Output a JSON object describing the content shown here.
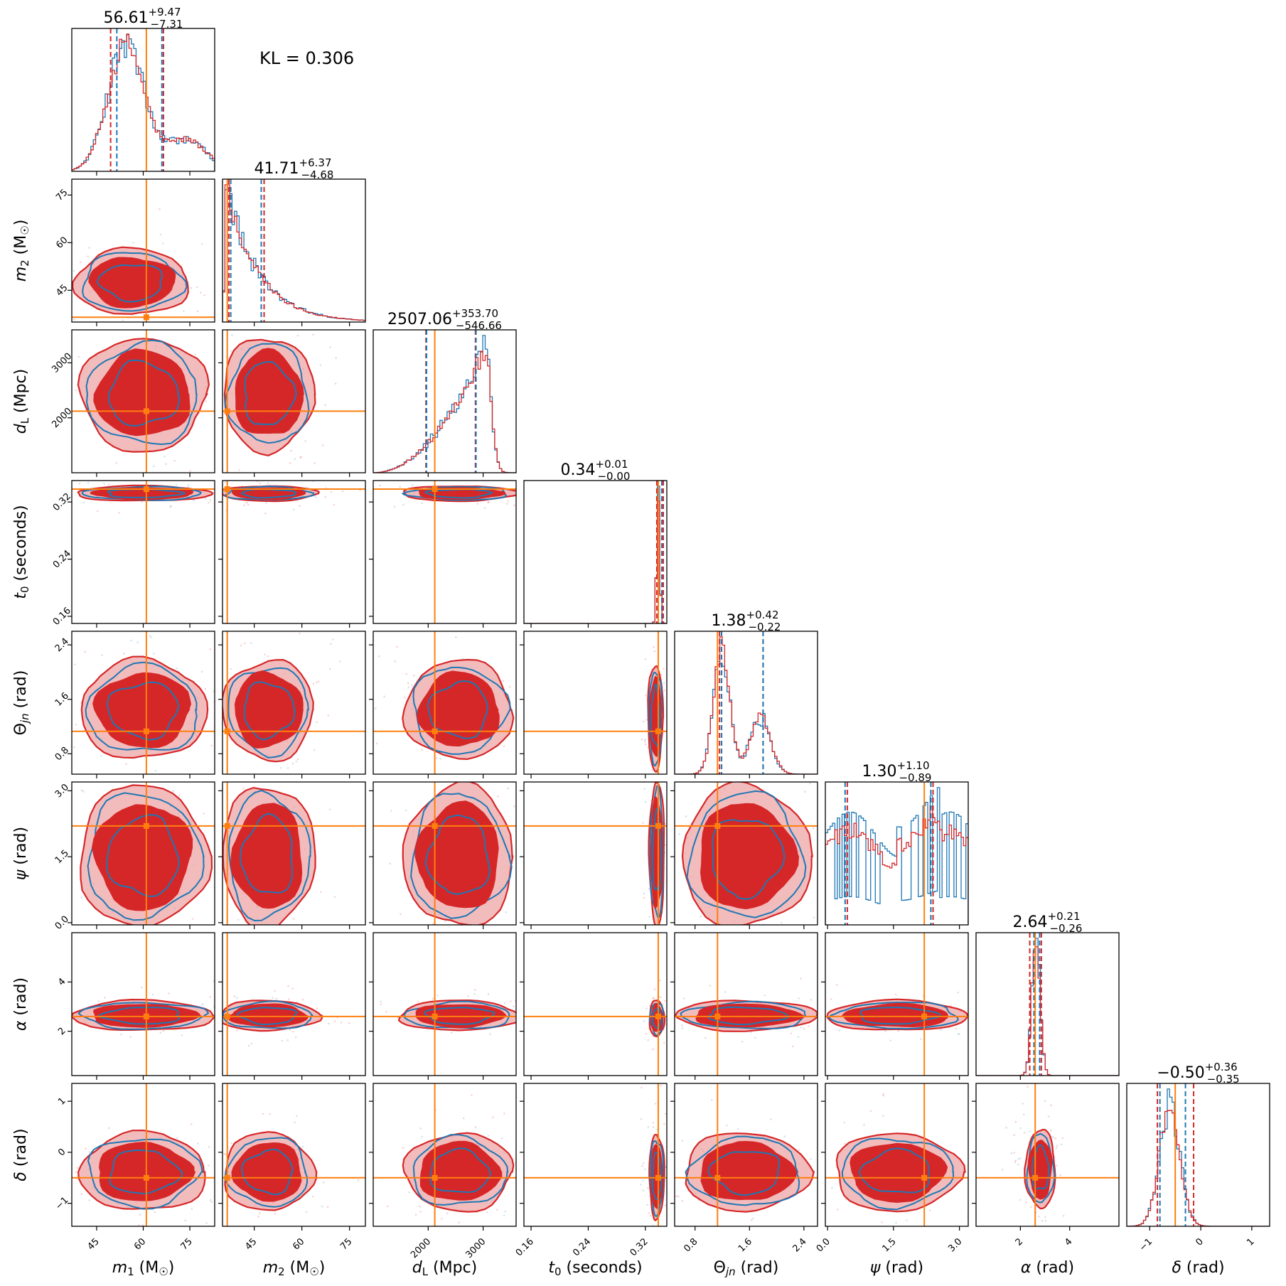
{
  "annotation": "KL = 0.306",
  "colors": {
    "red": "#d62728",
    "red_light": "#eda0a1",
    "blue": "#1f77b4",
    "truth": "#ff7f0e",
    "dark_median": "#7f2c3a"
  },
  "chart_data": {
    "type": "corner",
    "parameters": [
      {
        "key": "m1",
        "label": "m1 (M☉)",
        "range": [
          37,
          83
        ],
        "ticks": [
          45,
          60,
          75
        ],
        "tick_labels": [
          "45",
          "60",
          "75"
        ],
        "truth": 61,
        "title_main": "56.61",
        "title_sup": "+9.47",
        "title_sub": "−7.31",
        "q_red": [
          49.5,
          66.5
        ],
        "q_blue": [
          51.5,
          66
        ]
      },
      {
        "key": "m2",
        "label": "m2 (M☉)",
        "range": [
          35,
          80
        ],
        "ticks": [
          45,
          60,
          75
        ],
        "tick_labels": [
          "45",
          "60",
          "75"
        ],
        "truth": 36.5,
        "title_main": "41.71",
        "title_sup": "+6.37",
        "title_sub": "−4.68",
        "q_red": [
          37,
          48.1
        ],
        "q_blue": [
          37.6,
          47.2
        ]
      },
      {
        "key": "dL",
        "label": "dL (Mpc)",
        "range": [
          1000,
          3600
        ],
        "ticks": [
          2000,
          3000
        ],
        "tick_labels": [
          "2000",
          "3000"
        ],
        "truth": 2120,
        "title_main": "2507.06",
        "title_sup": "+353.70",
        "title_sub": "−546.66",
        "q_red": [
          1960,
          2860
        ],
        "q_blue": [
          1970,
          2870
        ]
      },
      {
        "key": "t0",
        "label": "t0 (seconds)",
        "range": [
          0.15,
          0.35
        ],
        "ticks": [
          0.16,
          0.24,
          0.32
        ],
        "tick_labels": [
          "0.16",
          "0.24",
          "0.32"
        ],
        "truth": 0.338,
        "title_main": "0.34",
        "title_sup": "+0.01",
        "title_sub": "−0.00",
        "q_red": [
          0.336,
          0.345
        ],
        "q_blue": [
          0.338,
          0.343
        ]
      },
      {
        "key": "thetajn",
        "label": "Θjn (rad)",
        "range": [
          0.5,
          2.6
        ],
        "ticks": [
          0.8,
          1.6,
          2.4
        ],
        "tick_labels": [
          "0.8",
          "1.6",
          "2.4"
        ],
        "truth": 1.13,
        "title_main": "1.38",
        "title_sup": "+0.42",
        "title_sub": "−0.22",
        "q_red": [
          1.16,
          1.8
        ],
        "q_blue": [
          1.19,
          1.8
        ]
      },
      {
        "key": "psi",
        "label": "ψ (rad)",
        "range": [
          -0.05,
          3.2
        ],
        "ticks": [
          0.0,
          1.5,
          3.0
        ],
        "tick_labels": [
          "0.0",
          "1.5",
          "3.0"
        ],
        "truth": 2.2,
        "title_main": "1.30",
        "title_sup": "+1.10",
        "title_sub": "−0.89",
        "q_red": [
          0.45,
          2.4
        ],
        "q_blue": [
          0.4,
          2.35
        ]
      },
      {
        "key": "alpha",
        "label": "α (rad)",
        "range": [
          0.2,
          6.0
        ],
        "ticks": [
          2,
          4
        ],
        "tick_labels": [
          "2",
          "4"
        ],
        "truth": 2.6,
        "title_main": "2.64",
        "title_sup": "+0.21",
        "title_sub": "−0.26",
        "q_red": [
          2.38,
          2.85
        ],
        "q_blue": [
          2.55,
          2.78
        ]
      },
      {
        "key": "delta",
        "label": "δ (rad)",
        "range": [
          -1.45,
          1.35
        ],
        "ticks": [
          -1,
          0,
          1
        ],
        "tick_labels": [
          "−1",
          "0",
          "1"
        ],
        "truth": -0.5,
        "title_main": "−0.50",
        "title_sup": "+0.36",
        "title_sub": "−0.35",
        "q_red": [
          -0.85,
          -0.14
        ],
        "q_blue": [
          -0.8,
          -0.3
        ]
      }
    ]
  }
}
